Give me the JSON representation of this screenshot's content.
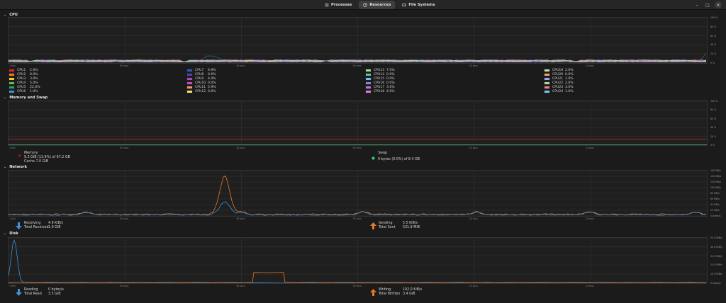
{
  "header": {
    "tabs": [
      {
        "label": "Processes",
        "icon": "list-icon",
        "active": false
      },
      {
        "label": "Resources",
        "icon": "gauge-icon",
        "active": true
      },
      {
        "label": "File Systems",
        "icon": "drive-icon",
        "active": false
      }
    ],
    "controls": {
      "minimize": "–",
      "maximize": "□",
      "close": "✕"
    }
  },
  "cpu": {
    "title": "CPU",
    "y_ticks": [
      "100 %",
      "80 %",
      "60 %",
      "40 %",
      "20 %",
      "0 %"
    ],
    "x_ticks": [
      "1 min",
      "50 secs",
      "40 secs",
      "30 secs",
      "20 secs",
      "10 secs"
    ],
    "cores": [
      {
        "name": "CPU1",
        "value": "2.0%",
        "color": "#e0242b"
      },
      {
        "name": "CPU2",
        "value": "0.0%",
        "color": "#f57a1f"
      },
      {
        "name": "CPU3",
        "value": "3.0%",
        "color": "#f7c924"
      },
      {
        "name": "CPU4",
        "value": "5.0%",
        "color": "#5ec24a"
      },
      {
        "name": "CPU5",
        "value": "22.0%",
        "color": "#2aa170"
      },
      {
        "name": "CPU6",
        "value": "1.0%",
        "color": "#3f8fd8"
      },
      {
        "name": "CPU7",
        "value": "6.9%",
        "color": "#2e5fb5"
      },
      {
        "name": "CPU8",
        "value": "0.0%",
        "color": "#5a3fa0"
      },
      {
        "name": "CPU9",
        "value": "4.0%",
        "color": "#9b4fc6"
      },
      {
        "name": "CPU10",
        "value": "0.0%",
        "color": "#c248c4"
      },
      {
        "name": "CPU11",
        "value": "5.9%",
        "color": "#e89a70"
      },
      {
        "name": "CPU12",
        "value": "0.0%",
        "color": "#f4df6a"
      },
      {
        "name": "CPU13",
        "value": "7.0%",
        "color": "#a8e08a"
      },
      {
        "name": "CPU14",
        "value": "0.0%",
        "color": "#57c9a8"
      },
      {
        "name": "CPU15",
        "value": "0.0%",
        "color": "#7ab8f0"
      },
      {
        "name": "CPU16",
        "value": "0.0%",
        "color": "#8e7ee0"
      },
      {
        "name": "CPU17",
        "value": "3.0%",
        "color": "#b47ad6"
      },
      {
        "name": "CPU18",
        "value": "4.0%",
        "color": "#e07ae0"
      },
      {
        "name": "CPU19",
        "value": "2.0%",
        "color": "#c2e59a"
      },
      {
        "name": "CPU20",
        "value": "0.0%",
        "color": "#f0a07a"
      },
      {
        "name": "CPU21",
        "value": "1.0%",
        "color": "#9fa3f0"
      },
      {
        "name": "CPU22",
        "value": "2.0%",
        "color": "#a8e08a"
      },
      {
        "name": "CPU23",
        "value": "3.0%",
        "color": "#f07aa0"
      },
      {
        "name": "CPU24",
        "value": "1.0%",
        "color": "#7ac8e8"
      }
    ]
  },
  "memory": {
    "title": "Memory and Swap",
    "y_ticks": [
      "100 %",
      "80 %",
      "60 %",
      "40 %",
      "20 %",
      "0 %"
    ],
    "x_ticks": [
      "1 min",
      "50 secs",
      "40 secs",
      "30 secs",
      "20 secs",
      "10 secs"
    ],
    "memory_label": "Memory",
    "memory_value": "9.3 GiB (13.9%) of 67.2 GB",
    "memory_cache": "Cache 7.0 GiB",
    "memory_color": "#d42a2a",
    "memory_level": 13.9,
    "swap_label": "Swap",
    "swap_value": "0 bytes (0.0%) of 8.4 GB",
    "swap_color": "#3cc07a",
    "swap_level": 0.0
  },
  "network": {
    "title": "Network",
    "y_ticks": [
      "160 KiB/s",
      "140 KiB/s",
      "120 KiB/s",
      "100 KiB/s",
      "80 KiB/s",
      "60 KiB/s",
      "40 KiB/s",
      "20 KiB/s",
      "0 bytes/s"
    ],
    "x_ticks": [
      "1 min",
      "50 secs",
      "40 secs",
      "30 secs",
      "20 secs",
      "10 secs"
    ],
    "receiving_label": "Receiving",
    "receiving_value": "4.9 KiB/s",
    "total_received_label": "Total Received",
    "total_received_value": "1.9 GiB",
    "receiving_color": "#3f8fd8",
    "sending_label": "Sending",
    "sending_value": "5.5 KiB/s",
    "total_sent_label": "Total Sent",
    "total_sent_value": "531.9 MiB",
    "sending_color": "#e87722"
  },
  "disk": {
    "title": "Disk",
    "y_ticks": [
      "50.0 MiB/s",
      "40.0 MiB/s",
      "30.0 MiB/s",
      "20.0 MiB/s",
      "10.0 MiB/s",
      "0 bytes/s"
    ],
    "x_ticks": [
      "1 min",
      "50 secs",
      "40 secs",
      "30 secs",
      "20 secs",
      "10 secs"
    ],
    "reading_label": "Reading",
    "reading_value": "0 bytes/s",
    "total_read_label": "Total Read",
    "total_read_value": "3.5 GiB",
    "reading_color": "#3f8fd8",
    "writing_label": "Writing",
    "writing_value": "102.0 KiB/s",
    "total_written_label": "Total Written",
    "total_written_value": "3.4 GiB",
    "writing_color": "#e87722"
  }
}
